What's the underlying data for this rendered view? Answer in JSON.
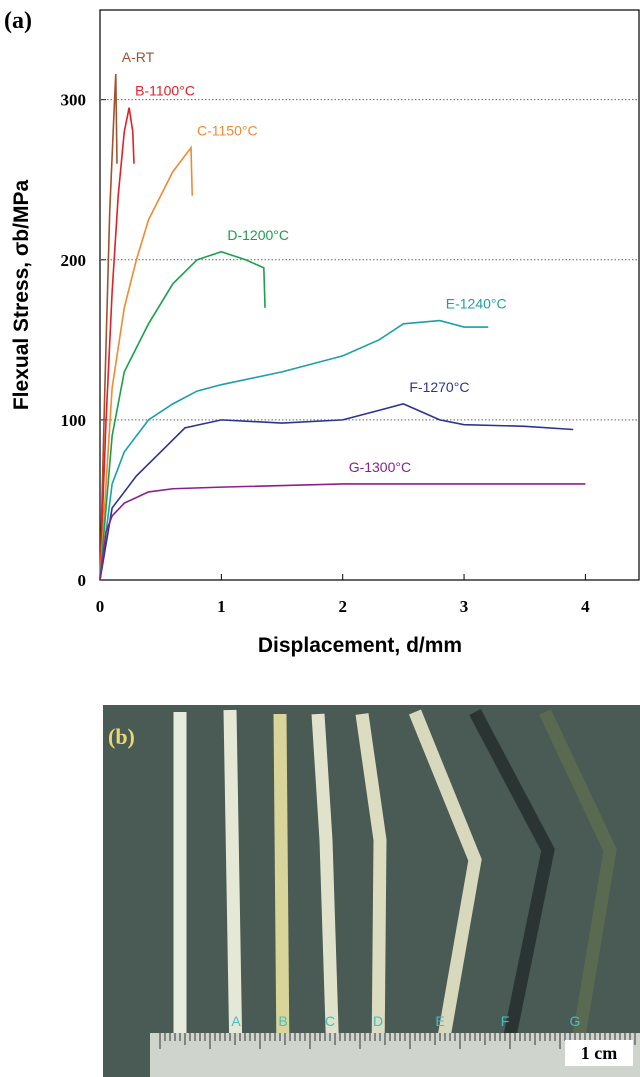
{
  "chart_data": {
    "type": "line",
    "panel_label": "(a)",
    "x_label": "Displacement, d/mm",
    "y_label": "Flexual Stress, σb/MPa",
    "xlim": [
      0,
      4.45
    ],
    "ylim": [
      0,
      356
    ],
    "xticks": [
      0,
      1,
      2,
      3,
      4
    ],
    "yticks": [
      0,
      100,
      200,
      300
    ],
    "grid": true,
    "series": [
      {
        "name": "A-RT",
        "color": "#a0522d",
        "x": [
          0,
          0.04,
          0.08,
          0.12,
          0.13,
          0.14
        ],
        "values": [
          0,
          120,
          230,
          300,
          316,
          260
        ]
      },
      {
        "name": "B-1100°C",
        "color": "#e0202a",
        "x": [
          0,
          0.05,
          0.1,
          0.15,
          0.2,
          0.24,
          0.27,
          0.28
        ],
        "values": [
          0,
          100,
          180,
          240,
          280,
          295,
          280,
          260
        ]
      },
      {
        "name": "C-1150°C",
        "color": "#f08a30",
        "x": [
          0,
          0.1,
          0.2,
          0.3,
          0.4,
          0.5,
          0.6,
          0.7,
          0.75,
          0.76
        ],
        "values": [
          0,
          120,
          170,
          200,
          225,
          240,
          255,
          265,
          270,
          240
        ]
      },
      {
        "name": "D-1200°C",
        "color": "#1aa04a",
        "x": [
          0,
          0.1,
          0.2,
          0.4,
          0.6,
          0.8,
          1.0,
          1.2,
          1.35,
          1.36
        ],
        "values": [
          0,
          90,
          130,
          160,
          185,
          200,
          205,
          200,
          195,
          170
        ]
      },
      {
        "name": "E-1240°C",
        "color": "#1aa0a8",
        "x": [
          0,
          0.1,
          0.2,
          0.4,
          0.6,
          0.8,
          1.0,
          1.5,
          2.0,
          2.3,
          2.5,
          2.8,
          3.0,
          3.2
        ],
        "values": [
          0,
          60,
          80,
          100,
          110,
          118,
          122,
          130,
          140,
          150,
          160,
          162,
          158,
          158
        ]
      },
      {
        "name": "F-1270°C",
        "color": "#2b3590",
        "x": [
          0,
          0.1,
          0.3,
          0.5,
          0.7,
          1.0,
          1.5,
          2.0,
          2.5,
          2.8,
          3.0,
          3.5,
          3.9
        ],
        "values": [
          0,
          45,
          65,
          80,
          95,
          100,
          98,
          100,
          110,
          100,
          97,
          96,
          94
        ]
      },
      {
        "name": "G-1300°C",
        "color": "#8a1f8e",
        "x": [
          0,
          0.05,
          0.1,
          0.2,
          0.4,
          0.6,
          1.0,
          2.0,
          3.0,
          3.5,
          4.0
        ],
        "values": [
          0,
          30,
          40,
          48,
          55,
          57,
          58,
          60,
          60,
          60,
          60
        ]
      }
    ]
  },
  "photo": {
    "panel_label": "(b)",
    "specimens": [
      "A",
      "B",
      "C",
      "D",
      "E",
      "F",
      "G"
    ],
    "scale": "1 cm"
  }
}
